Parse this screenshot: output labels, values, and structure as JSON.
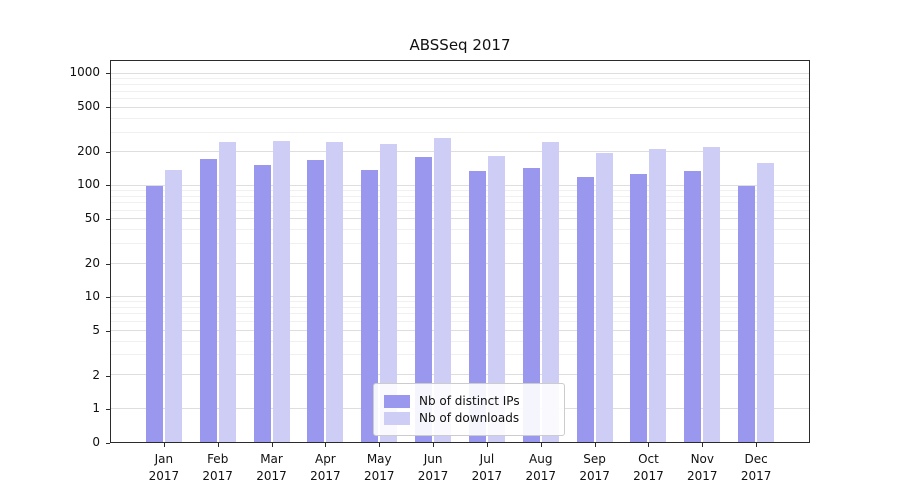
{
  "chart_data": {
    "type": "bar",
    "title": "ABSSeq 2017",
    "categories": [
      "Jan",
      "Feb",
      "Mar",
      "Apr",
      "May",
      "Jun",
      "Jul",
      "Aug",
      "Sep",
      "Oct",
      "Nov",
      "Dec"
    ],
    "year": "2017",
    "series": [
      {
        "name": "Nb of distinct IPs",
        "color": "#9997ee",
        "values": [
          100,
          175,
          155,
          170,
          140,
          180,
          135,
          145,
          120,
          127,
          137,
          100
        ]
      },
      {
        "name": "Nb of downloads",
        "color": "#cecdf6",
        "values": [
          140,
          245,
          250,
          245,
          235,
          270,
          185,
          245,
          195,
          215,
          225,
          160
        ]
      }
    ],
    "yscale": "symlog",
    "yticks": [
      0,
      1,
      2,
      5,
      10,
      20,
      50,
      100,
      200,
      500,
      1000
    ],
    "ylim": [
      0,
      1300
    ],
    "grid": true,
    "legend_position": "bottom-center"
  }
}
